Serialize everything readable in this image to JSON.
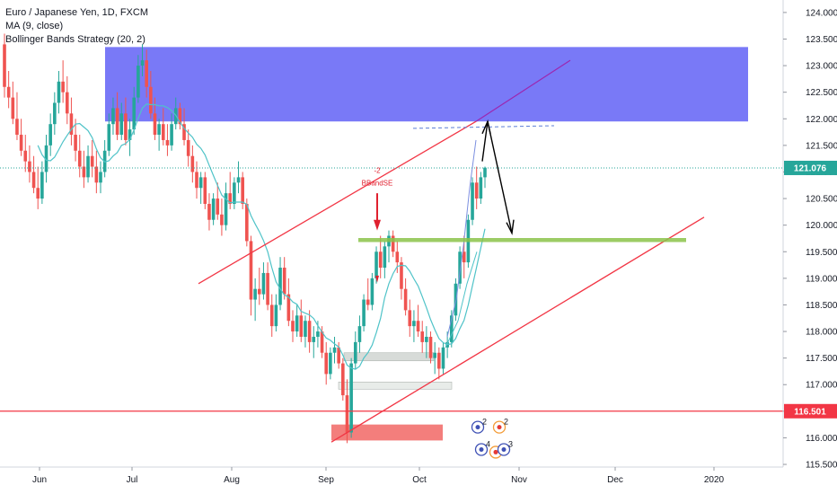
{
  "legend": {
    "symbol": "Euro / Japanese Yen, 1D, FXCM",
    "ma": "MA (9, close)",
    "strategy": "Bollinger Bands Strategy (20, 2)"
  },
  "colors": {
    "up": "#26a69a",
    "down": "#ef5350",
    "ma": "#4fc3c8",
    "bands": "#7b8fe0",
    "zone": "#5b5bf5",
    "channel": "#f23645",
    "support": "#8bc34a"
  },
  "chart_data": {
    "type": "candlestick",
    "ylim": [
      115.45,
      124.15
    ],
    "yticks": [
      "124.000",
      "123.500",
      "123.000",
      "122.500",
      "122.000",
      "121.500",
      "121.000",
      "120.500",
      "120.000",
      "119.500",
      "119.000",
      "118.500",
      "118.000",
      "117.500",
      "117.000",
      "116.500",
      "116.000",
      "115.500"
    ],
    "xticks": [
      "Jun",
      "Jul",
      "Aug",
      "Sep",
      "Oct",
      "Nov",
      "Dec",
      "2020"
    ],
    "last_price": "121.076",
    "level_price": "116.501",
    "signal_label": "BBandSE",
    "signal_count": "-2",
    "event_counts": [
      "2",
      "2",
      "4",
      "3",
      "3"
    ],
    "candles": [
      [
        123.4,
        123.6,
        122.4,
        122.6
      ],
      [
        122.6,
        122.9,
        122.2,
        122.4
      ],
      [
        122.4,
        122.7,
        121.9,
        122.0
      ],
      [
        122.0,
        122.5,
        121.6,
        121.7
      ],
      [
        121.7,
        122.0,
        121.3,
        121.4
      ],
      [
        121.4,
        121.7,
        121.0,
        121.2
      ],
      [
        121.2,
        121.5,
        120.8,
        121.0
      ],
      [
        121.0,
        121.3,
        120.6,
        120.7
      ],
      [
        120.7,
        121.1,
        120.3,
        120.5
      ],
      [
        120.5,
        121.2,
        120.4,
        121.0
      ],
      [
        121.0,
        121.7,
        120.8,
        121.5
      ],
      [
        121.5,
        122.1,
        121.3,
        121.9
      ],
      [
        121.9,
        122.5,
        121.7,
        122.3
      ],
      [
        122.3,
        122.9,
        122.1,
        122.7
      ],
      [
        122.7,
        123.1,
        122.3,
        122.5
      ],
      [
        122.5,
        122.8,
        121.9,
        122.1
      ],
      [
        122.1,
        122.4,
        121.5,
        121.7
      ],
      [
        121.7,
        122.0,
        121.2,
        121.4
      ],
      [
        121.4,
        121.7,
        120.9,
        121.1
      ],
      [
        121.1,
        121.4,
        120.7,
        120.9
      ],
      [
        120.9,
        121.5,
        120.8,
        121.3
      ],
      [
        121.3,
        121.6,
        120.9,
        121.1
      ],
      [
        121.1,
        121.4,
        120.6,
        120.8
      ],
      [
        120.8,
        121.2,
        120.6,
        121.0
      ],
      [
        121.0,
        121.6,
        120.9,
        121.4
      ],
      [
        121.4,
        122.1,
        121.3,
        121.9
      ],
      [
        121.9,
        122.4,
        121.7,
        122.2
      ],
      [
        122.2,
        122.5,
        121.6,
        121.7
      ],
      [
        121.7,
        122.3,
        121.6,
        122.1
      ],
      [
        122.1,
        122.4,
        121.5,
        121.6
      ],
      [
        121.6,
        122.0,
        121.3,
        121.8
      ],
      [
        121.8,
        122.6,
        121.7,
        122.4
      ],
      [
        122.4,
        123.2,
        122.3,
        123.0
      ],
      [
        123.0,
        123.4,
        122.8,
        123.1
      ],
      [
        123.1,
        123.3,
        122.4,
        122.6
      ],
      [
        122.6,
        122.9,
        122.0,
        122.1
      ],
      [
        122.1,
        122.4,
        121.6,
        121.7
      ],
      [
        121.7,
        122.0,
        121.4,
        121.9
      ],
      [
        121.9,
        122.2,
        121.5,
        121.6
      ],
      [
        121.6,
        121.9,
        121.3,
        121.5
      ],
      [
        121.5,
        122.1,
        121.4,
        121.9
      ],
      [
        121.9,
        122.4,
        121.8,
        122.2
      ],
      [
        122.2,
        122.3,
        121.8,
        121.9
      ],
      [
        121.9,
        122.2,
        121.5,
        121.6
      ],
      [
        121.6,
        121.8,
        121.1,
        121.3
      ],
      [
        121.3,
        121.5,
        120.8,
        121.0
      ],
      [
        121.0,
        121.2,
        120.5,
        120.7
      ],
      [
        120.7,
        121.0,
        120.4,
        120.9
      ],
      [
        120.9,
        121.0,
        120.3,
        120.4
      ],
      [
        120.4,
        120.6,
        119.9,
        120.1
      ],
      [
        120.1,
        120.6,
        120.0,
        120.5
      ],
      [
        120.5,
        120.8,
        120.1,
        120.2
      ],
      [
        120.2,
        120.5,
        119.8,
        120.0
      ],
      [
        120.0,
        120.8,
        119.9,
        120.6
      ],
      [
        120.6,
        121.0,
        120.3,
        120.4
      ],
      [
        120.4,
        120.9,
        120.3,
        120.8
      ],
      [
        120.8,
        121.2,
        120.6,
        120.9
      ],
      [
        120.9,
        121.0,
        120.3,
        120.4
      ],
      [
        120.4,
        120.5,
        119.6,
        119.7
      ],
      [
        119.7,
        119.8,
        118.3,
        118.6
      ],
      [
        118.6,
        119.0,
        118.2,
        118.8
      ],
      [
        118.8,
        119.2,
        118.5,
        118.7
      ],
      [
        118.7,
        119.3,
        118.6,
        119.1
      ],
      [
        119.1,
        119.3,
        118.4,
        118.5
      ],
      [
        118.5,
        118.7,
        117.9,
        118.1
      ],
      [
        118.1,
        118.7,
        118.0,
        118.5
      ],
      [
        118.5,
        119.4,
        118.4,
        119.2
      ],
      [
        119.2,
        119.4,
        118.6,
        118.7
      ],
      [
        118.7,
        119.0,
        118.1,
        118.2
      ],
      [
        118.2,
        118.4,
        117.8,
        118.0
      ],
      [
        118.0,
        118.5,
        117.9,
        118.3
      ],
      [
        118.3,
        118.6,
        117.8,
        117.9
      ],
      [
        117.9,
        118.3,
        117.7,
        118.2
      ],
      [
        118.2,
        118.4,
        117.6,
        117.8
      ],
      [
        117.8,
        118.1,
        117.5,
        117.9
      ],
      [
        117.9,
        118.2,
        117.7,
        118.0
      ],
      [
        118.0,
        118.1,
        117.5,
        117.6
      ],
      [
        117.6,
        117.8,
        117.0,
        117.2
      ],
      [
        117.2,
        117.7,
        117.1,
        117.6
      ],
      [
        117.6,
        117.9,
        117.4,
        117.7
      ],
      [
        117.7,
        117.8,
        117.3,
        117.4
      ],
      [
        117.4,
        117.5,
        116.7,
        116.8
      ],
      [
        116.8,
        117.1,
        115.9,
        116.1
      ],
      [
        116.1,
        117.5,
        116.0,
        117.4
      ],
      [
        117.4,
        118.0,
        117.3,
        117.8
      ],
      [
        117.8,
        118.3,
        117.6,
        118.1
      ],
      [
        118.1,
        118.7,
        118.0,
        118.6
      ],
      [
        118.6,
        119.0,
        118.4,
        118.5
      ],
      [
        118.5,
        119.1,
        118.4,
        119.0
      ],
      [
        119.0,
        119.6,
        118.9,
        119.5
      ],
      [
        119.5,
        119.8,
        119.0,
        119.2
      ],
      [
        119.2,
        119.7,
        119.0,
        119.6
      ],
      [
        119.6,
        119.9,
        119.3,
        119.8
      ],
      [
        119.8,
        119.9,
        119.4,
        119.5
      ],
      [
        119.5,
        119.7,
        119.1,
        119.3
      ],
      [
        119.3,
        119.4,
        118.6,
        118.8
      ],
      [
        118.8,
        119.0,
        118.3,
        118.4
      ],
      [
        118.4,
        118.6,
        117.9,
        118.1
      ],
      [
        118.1,
        118.4,
        117.8,
        118.2
      ],
      [
        118.2,
        118.5,
        117.9,
        118.0
      ],
      [
        118.0,
        118.2,
        117.6,
        117.8
      ],
      [
        117.8,
        118.1,
        117.5,
        117.9
      ],
      [
        117.9,
        118.0,
        117.4,
        117.5
      ],
      [
        117.5,
        117.8,
        117.2,
        117.6
      ],
      [
        117.6,
        117.7,
        117.1,
        117.3
      ],
      [
        117.3,
        117.8,
        117.2,
        117.7
      ],
      [
        117.7,
        118.0,
        117.5,
        117.8
      ],
      [
        117.8,
        118.4,
        117.7,
        118.3
      ],
      [
        118.3,
        119.0,
        118.2,
        118.9
      ],
      [
        118.9,
        119.6,
        118.8,
        119.5
      ],
      [
        119.5,
        119.8,
        119.0,
        119.3
      ],
      [
        119.3,
        120.2,
        119.2,
        120.1
      ],
      [
        120.1,
        120.9,
        120.0,
        120.8
      ],
      [
        120.8,
        121.1,
        120.3,
        120.5
      ],
      [
        120.5,
        121.0,
        120.4,
        120.9
      ],
      [
        120.9,
        121.1,
        120.7,
        121.08
      ]
    ]
  }
}
